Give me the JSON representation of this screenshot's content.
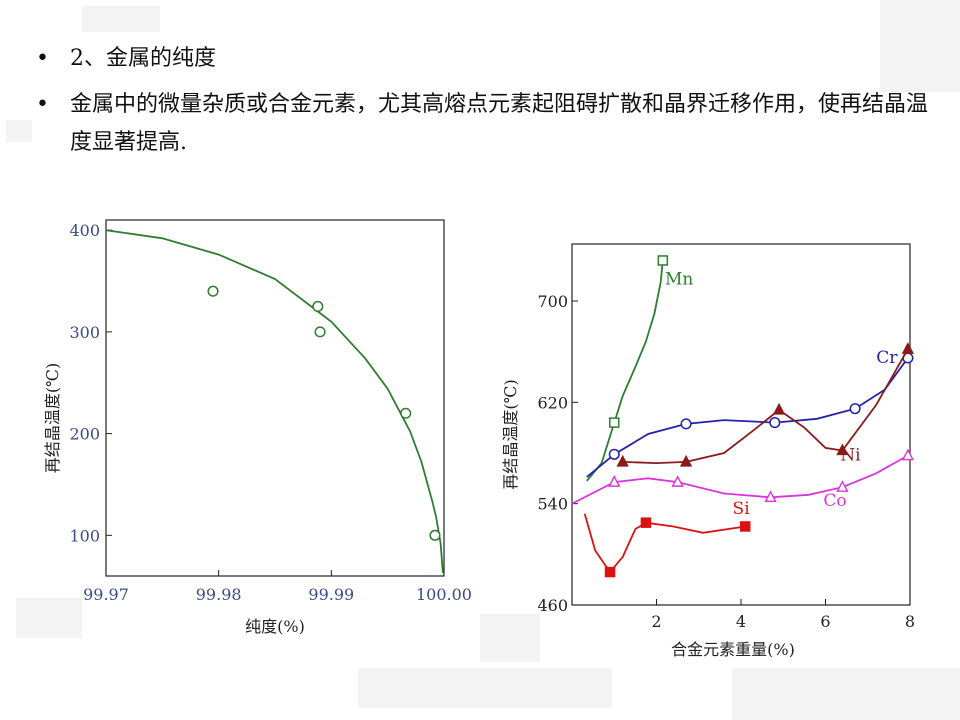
{
  "bullets": [
    {
      "marker": "•",
      "text": "2、金属的纯度"
    },
    {
      "marker": "•",
      "text": "金属中的微量杂质或合金元素，尤其高熔点元素起阻碍扩散和晶界迁移作用，使再结晶温度显著提高."
    }
  ],
  "chart_data": [
    {
      "type": "scatter",
      "title": "",
      "xlabel": "纯度(%)",
      "ylabel": "再结晶温度(℃)",
      "xlim": [
        99.97,
        100.0
      ],
      "ylim": [
        60,
        410
      ],
      "x_ticks": [
        "99.97",
        "99.98",
        "99.99",
        "100.00"
      ],
      "y_ticks": [
        "100",
        "200",
        "300",
        "400"
      ],
      "x_tick_values": [
        99.97,
        99.98,
        99.99,
        100.0
      ],
      "y_tick_values": [
        100,
        200,
        300,
        400
      ],
      "grid": false,
      "colors": {
        "curve": "#2e7d32",
        "marker": "#2e7d32"
      },
      "series": [
        {
          "kind": "points",
          "x": [
            99.9795,
            99.9888,
            99.989,
            99.9966,
            99.9992
          ],
          "y": [
            340,
            325,
            300,
            220,
            100
          ]
        },
        {
          "kind": "fit",
          "x": [
            99.97,
            99.975,
            99.98,
            99.985,
            99.99,
            99.993,
            99.995,
            99.997,
            99.998,
            99.999,
            99.9993,
            99.9997,
            99.9999
          ],
          "y": [
            400,
            392,
            376,
            352,
            310,
            274,
            244,
            202,
            172,
            132,
            118,
            92,
            63
          ]
        }
      ]
    },
    {
      "type": "line",
      "title": "",
      "xlabel": "合金元素重量(%)",
      "ylabel": "再结晶温度(℃)",
      "xlim": [
        0,
        8
      ],
      "ylim": [
        460,
        745
      ],
      "x_ticks": [
        "2",
        "4",
        "6",
        "8"
      ],
      "y_ticks": [
        "460",
        "540",
        "620",
        "700"
      ],
      "x_tick_values": [
        2,
        4,
        6,
        8
      ],
      "y_tick_values": [
        460,
        540,
        620,
        700
      ],
      "grid": false,
      "series": [
        {
          "name": "Mn",
          "color": "#2e7d32",
          "marker": "square-open",
          "x": [
            1.0,
            2.15
          ],
          "y": [
            604,
            732
          ],
          "curve_x": [
            0.35,
            0.7,
            1.0,
            1.2,
            1.5,
            1.75,
            1.95,
            2.1,
            2.15
          ],
          "curve_y": [
            558,
            572,
            604,
            625,
            648,
            668,
            690,
            715,
            732
          ]
        },
        {
          "name": "Cr",
          "color": "#2222aa",
          "marker": "circle-open",
          "x": [
            1.0,
            2.7,
            4.8,
            6.7,
            7.95
          ],
          "y": [
            579,
            603,
            604,
            615,
            655
          ],
          "curve_x": [
            0.35,
            1.0,
            1.8,
            2.7,
            3.6,
            4.8,
            5.8,
            6.7,
            7.4,
            7.95
          ],
          "curve_y": [
            561,
            579,
            595,
            603,
            606,
            604,
            607,
            615,
            630,
            655
          ]
        },
        {
          "name": "Ni",
          "color": "#8b1a1a",
          "marker": "triangle-filled",
          "x": [
            1.2,
            2.7,
            4.9,
            6.4,
            7.95
          ],
          "y": [
            573,
            573,
            614,
            582,
            662
          ],
          "curve_x": [
            1.2,
            2.0,
            2.7,
            3.6,
            4.3,
            4.9,
            5.5,
            6.0,
            6.4,
            7.2,
            7.95
          ],
          "curve_y": [
            573,
            572,
            573,
            580,
            598,
            614,
            600,
            584,
            582,
            618,
            662
          ]
        },
        {
          "name": "Co",
          "color": "#dd33dd",
          "marker": "triangle-open",
          "x": [
            1.0,
            2.5,
            4.7,
            6.4,
            7.95
          ],
          "y": [
            557,
            557,
            545,
            553,
            578
          ],
          "curve_x": [
            0.0,
            1.0,
            1.8,
            2.5,
            3.6,
            4.7,
            5.6,
            6.4,
            7.2,
            7.95
          ],
          "curve_y": [
            540,
            557,
            560,
            557,
            548,
            545,
            547,
            553,
            564,
            578
          ]
        },
        {
          "name": "Si",
          "color": "#dd1111",
          "marker": "square-filled",
          "x": [
            0.9,
            1.75,
            4.1
          ],
          "y": [
            486,
            525,
            522
          ],
          "curve_x": [
            0.3,
            0.55,
            0.9,
            1.2,
            1.5,
            1.75,
            2.4,
            3.1,
            4.1
          ],
          "curve_y": [
            532,
            503,
            486,
            498,
            520,
            525,
            522,
            517,
            522
          ]
        }
      ],
      "annotations": [
        {
          "text": "Mn",
          "x": 2.2,
          "y": 713
        },
        {
          "text": "Cr",
          "x": 7.2,
          "y": 651
        },
        {
          "text": "Ni",
          "x": 6.35,
          "y": 574
        },
        {
          "text": "Co",
          "x": 5.95,
          "y": 538
        },
        {
          "text": "Si",
          "x": 3.8,
          "y": 532
        }
      ]
    }
  ]
}
